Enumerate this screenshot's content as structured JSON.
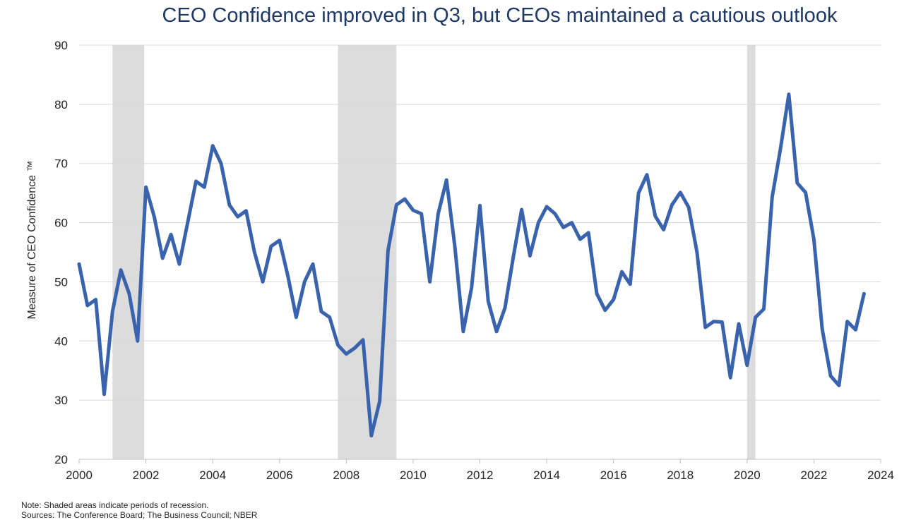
{
  "chart_data": {
    "type": "line",
    "title": "CEO Confidence improved in Q3, but CEOs maintained a cautious outlook",
    "xlabel": "",
    "ylabel": "Measure of CEO Confidence ™",
    "xlim": [
      2000,
      2024
    ],
    "ylim": [
      20,
      90
    ],
    "x_ticks": [
      2000,
      2002,
      2004,
      2006,
      2008,
      2010,
      2012,
      2014,
      2016,
      2018,
      2020,
      2022,
      2024
    ],
    "y_ticks": [
      20,
      30,
      40,
      50,
      60,
      70,
      80,
      90
    ],
    "grid": true,
    "recessions": [
      {
        "start": 2001.0,
        "end": 2001.95
      },
      {
        "start": 2007.75,
        "end": 2009.5
      },
      {
        "start": 2020.0,
        "end": 2020.25
      }
    ],
    "series": [
      {
        "name": "CEO Confidence",
        "color": "#3a63ad",
        "x": [
          2000.0,
          2000.25,
          2000.5,
          2000.75,
          2001.0,
          2001.25,
          2001.5,
          2001.75,
          2002.0,
          2002.25,
          2002.5,
          2002.75,
          2003.0,
          2003.25,
          2003.5,
          2003.75,
          2004.0,
          2004.25,
          2004.5,
          2004.75,
          2005.0,
          2005.25,
          2005.5,
          2005.75,
          2006.0,
          2006.25,
          2006.5,
          2006.75,
          2007.0,
          2007.25,
          2007.5,
          2007.75,
          2008.0,
          2008.25,
          2008.5,
          2008.75,
          2009.0,
          2009.25,
          2009.5,
          2009.75,
          2010.0,
          2010.25,
          2010.5,
          2010.75,
          2011.0,
          2011.25,
          2011.5,
          2011.75,
          2012.0,
          2012.25,
          2012.5,
          2012.75,
          2013.0,
          2013.25,
          2013.5,
          2013.75,
          2014.0,
          2014.25,
          2014.5,
          2014.75,
          2015.0,
          2015.25,
          2015.5,
          2015.75,
          2016.0,
          2016.25,
          2016.5,
          2016.75,
          2017.0,
          2017.25,
          2017.5,
          2017.75,
          2018.0,
          2018.25,
          2018.5,
          2018.75,
          2019.0,
          2019.25,
          2019.5,
          2019.75,
          2020.0,
          2020.25,
          2020.5,
          2020.75,
          2021.0,
          2021.25,
          2021.5,
          2021.75,
          2022.0,
          2022.25,
          2022.5,
          2022.75,
          2023.0,
          2023.25,
          2023.5
        ],
        "values": [
          53,
          46,
          47,
          31,
          45,
          52,
          48,
          40,
          66,
          61,
          54,
          58,
          53,
          60,
          67,
          66,
          73,
          70,
          63,
          61,
          62,
          55,
          50,
          56,
          57,
          51,
          44,
          50,
          53,
          45,
          44,
          39.3,
          37.8,
          38.8,
          40.2,
          24,
          29.8,
          55.3,
          63,
          64,
          62.1,
          61.5,
          50,
          61.5,
          67.2,
          56,
          41.6,
          49,
          62.9,
          46.7,
          41.6,
          45.6,
          54.2,
          62.2,
          54.4,
          60,
          62.7,
          61.5,
          59.2,
          60,
          57.2,
          58.3,
          48,
          45.2,
          47,
          51.7,
          49.6,
          65,
          68.1,
          61.1,
          58.8,
          63,
          65.1,
          62.6,
          55,
          42.3,
          43.3,
          43.2,
          33.8,
          42.9,
          35.9,
          44,
          45.4,
          64.3,
          72.5,
          81.7,
          66.7,
          65.1,
          57.2,
          42,
          34.1,
          32.5,
          43.3,
          41.9,
          48
        ]
      }
    ]
  },
  "footnotes": {
    "note": "Note: Shaded areas indicate periods of  recession.",
    "sources": "Sources: The  Conference Board; The Business Council; NBER"
  }
}
